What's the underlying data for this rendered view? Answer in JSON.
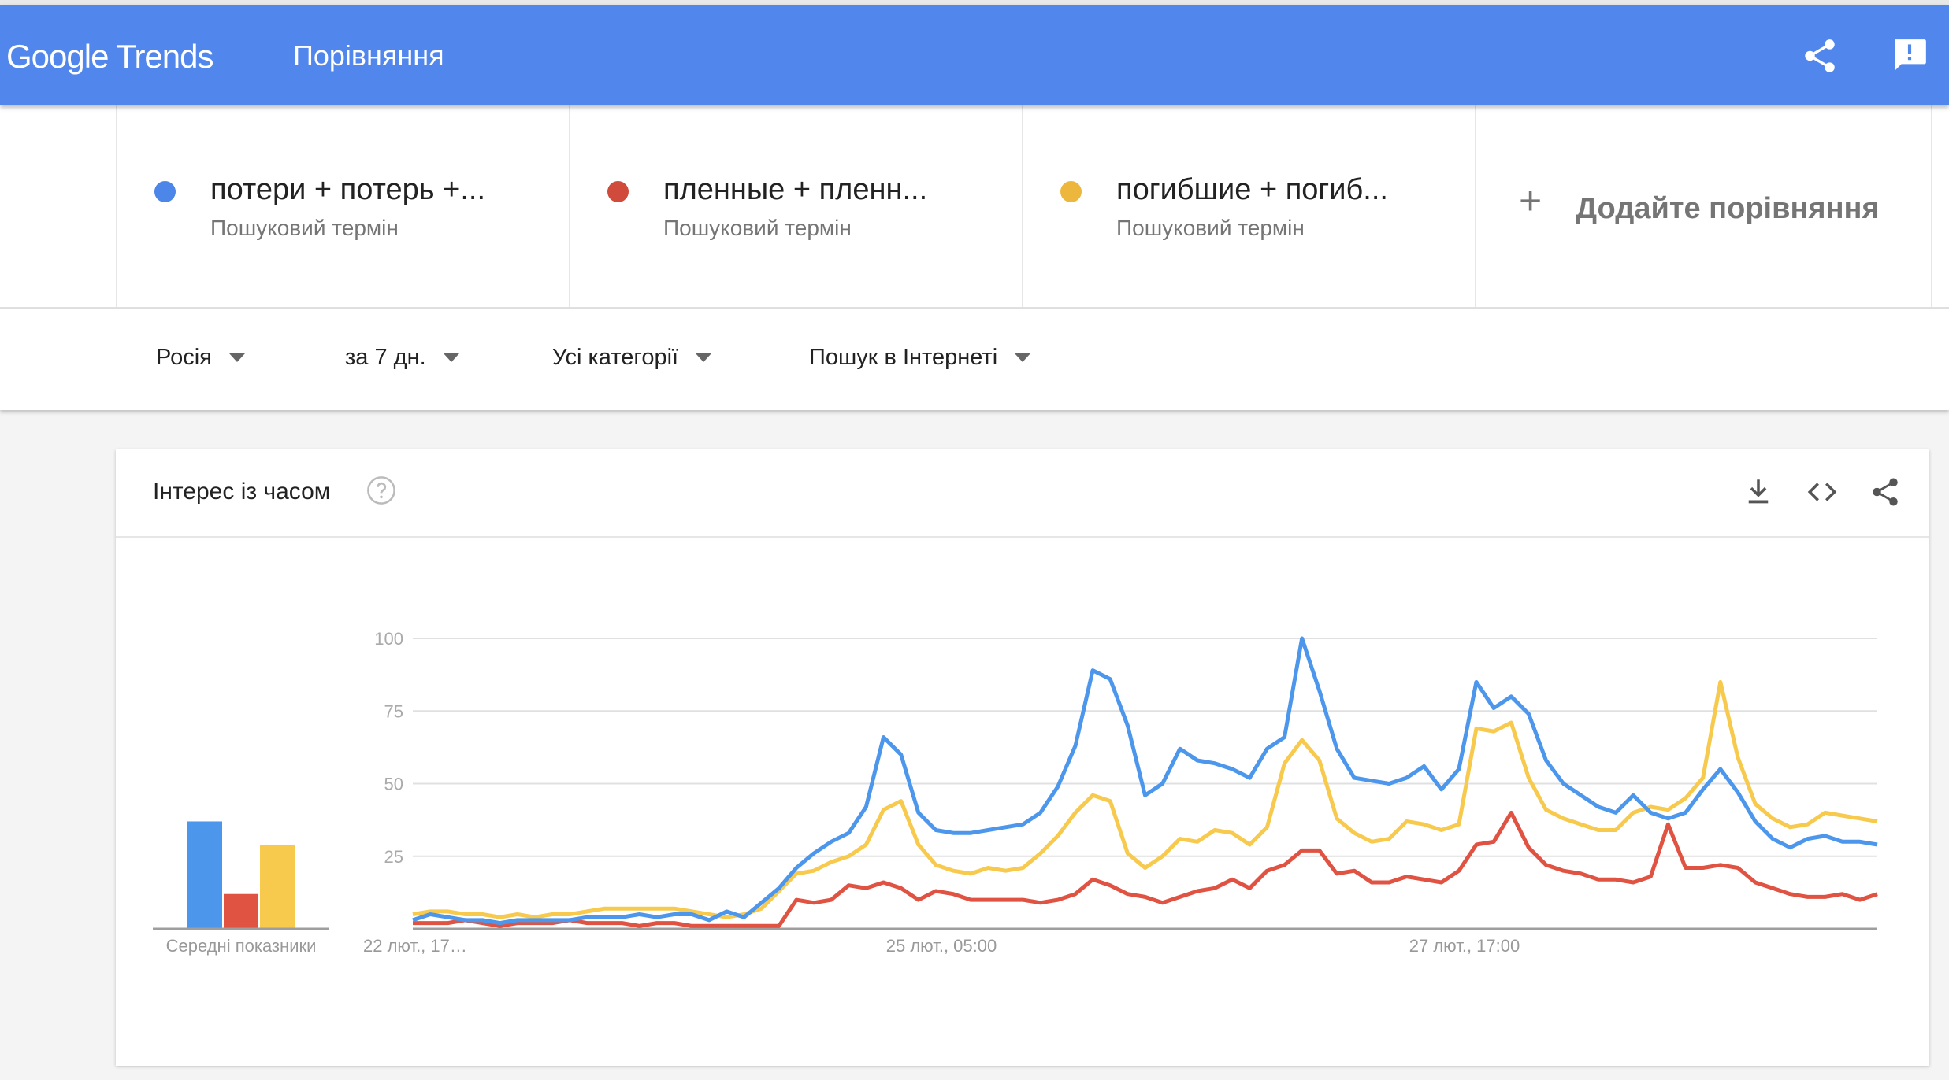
{
  "header": {
    "logo": "Google Trends",
    "title": "Порівняння",
    "share_icon": "share-icon",
    "feedback_icon": "feedback-icon",
    "color": "#5186ec"
  },
  "terms": [
    {
      "name": "потери + потерь +...",
      "type": "Пошуковий термін",
      "color": "#4c86e8"
    },
    {
      "name": "пленные + пленн...",
      "type": "Пошуковий термін",
      "color": "#d14b3c"
    },
    {
      "name": "погибшие + погиб...",
      "type": "Пошуковий термін",
      "color": "#ecb73c"
    }
  ],
  "add_comparison": {
    "icon": "plus-icon",
    "label": "Додайте порівняння"
  },
  "filters": [
    {
      "label": "Росія"
    },
    {
      "label": "за 7 дн."
    },
    {
      "label": "Усі категорії"
    },
    {
      "label": "Пошук в Інтернеті"
    }
  ],
  "card": {
    "title": "Інтерес із часом",
    "icons": [
      "help-icon",
      "download-icon",
      "embed-icon",
      "share-icon"
    ]
  },
  "chart_data": [
    {
      "type": "bar",
      "xlabel": "Середні показники",
      "categories": [
        "потери + потерь +...",
        "пленные + пленн...",
        "погибшие + погиб..."
      ],
      "values": [
        37,
        12,
        29
      ],
      "colors": [
        "#4c96ec",
        "#e05241",
        "#f7ca4e"
      ],
      "ylim": [
        0,
        100
      ]
    },
    {
      "type": "line",
      "ylim": [
        0,
        100
      ],
      "yticks": [
        "100",
        "75",
        "50",
        "25"
      ],
      "ytick_values": [
        100,
        75,
        50,
        25
      ],
      "xticks": [
        "22 лют., 17…",
        "25 лют., 05:00",
        "27 лют., 17:00"
      ],
      "grid": true,
      "series": [
        {
          "color": "#4c96ec",
          "values": [
            3,
            5,
            4,
            3,
            3,
            2,
            3,
            3,
            3,
            3,
            4,
            4,
            4,
            5,
            4,
            5,
            5,
            3,
            6,
            4,
            9,
            14,
            21,
            26,
            30,
            33,
            42,
            66,
            60,
            40,
            34,
            33,
            33,
            34,
            35,
            36,
            40,
            49,
            63,
            89,
            86,
            70,
            46,
            50,
            62,
            58,
            57,
            55,
            52,
            62,
            66,
            100,
            82,
            62,
            52,
            51,
            50,
            52,
            56,
            48,
            55,
            85,
            76,
            80,
            74,
            58,
            50,
            46,
            42,
            40,
            46,
            40,
            38,
            40,
            48,
            55,
            47,
            37,
            31,
            28,
            31,
            32,
            30,
            30,
            29
          ]
        },
        {
          "color": "#e05241",
          "values": [
            2,
            2,
            2,
            3,
            2,
            1,
            2,
            2,
            2,
            3,
            2,
            2,
            2,
            1,
            2,
            2,
            1,
            1,
            1,
            1,
            1,
            1,
            10,
            9,
            10,
            15,
            14,
            16,
            14,
            10,
            13,
            12,
            10,
            10,
            10,
            10,
            9,
            10,
            12,
            17,
            15,
            12,
            11,
            9,
            11,
            13,
            14,
            17,
            14,
            20,
            22,
            27,
            27,
            19,
            20,
            16,
            16,
            18,
            17,
            16,
            20,
            29,
            30,
            40,
            28,
            22,
            20,
            19,
            17,
            17,
            16,
            18,
            36,
            21,
            21,
            22,
            21,
            16,
            14,
            12,
            11,
            11,
            12,
            10,
            12
          ]
        },
        {
          "color": "#f7ca4e",
          "values": [
            5,
            6,
            6,
            5,
            5,
            4,
            5,
            4,
            5,
            5,
            6,
            7,
            7,
            7,
            7,
            7,
            6,
            5,
            4,
            5,
            7,
            13,
            19,
            20,
            23,
            25,
            29,
            41,
            44,
            29,
            22,
            20,
            19,
            21,
            20,
            21,
            26,
            32,
            40,
            46,
            44,
            26,
            21,
            25,
            31,
            30,
            34,
            33,
            29,
            35,
            57,
            65,
            58,
            38,
            33,
            30,
            31,
            37,
            36,
            34,
            36,
            69,
            68,
            71,
            52,
            41,
            38,
            36,
            34,
            34,
            40,
            42,
            41,
            45,
            52,
            85,
            59,
            43,
            38,
            35,
            36,
            40,
            39,
            38,
            37
          ]
        }
      ]
    }
  ]
}
